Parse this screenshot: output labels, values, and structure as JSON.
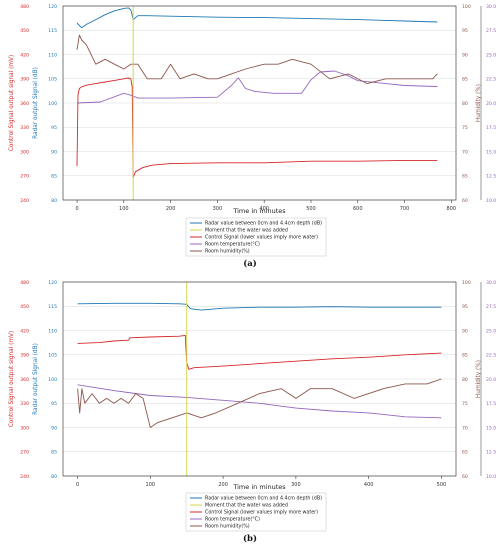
{
  "colors": {
    "radar": "#1f77b4",
    "event": "#d6d64a",
    "control": "#d62728",
    "temperature": "#9467bd",
    "humidity": "#8c564b",
    "grid": "#d9d9d9"
  },
  "chart_data": [
    {
      "type": "line",
      "caption": "(a)",
      "xlabel": "Time in minutes",
      "xlim": [
        -30,
        810
      ],
      "x_ticks": [
        "0",
        "100",
        "200",
        "300",
        "400",
        "500",
        "600",
        "700",
        "800"
      ],
      "event_x": 120,
      "axes": {
        "radar": {
          "label": "Radar output Signal (dB)",
          "range": [
            80,
            120
          ],
          "ticks": [
            "80",
            "85",
            "90",
            "95",
            "100",
            "105",
            "110",
            "115",
            "120"
          ]
        },
        "control": {
          "label": "Control Signal output signal (mV)",
          "range": [
            240,
            480
          ],
          "ticks": [
            "240",
            "270",
            "300",
            "330",
            "360",
            "390",
            "420",
            "450",
            "480"
          ]
        },
        "humidity": {
          "label": "Humidity (%)",
          "range": [
            60,
            100
          ],
          "ticks": [
            "60",
            "65",
            "70",
            "75",
            "80",
            "85",
            "90",
            "95",
            "100"
          ]
        },
        "temperature": {
          "label": "Temperature (°C)",
          "range": [
            10,
            30
          ],
          "ticks": [
            "10.0",
            "12.5",
            "15.0",
            "17.5",
            "20.0",
            "22.5",
            "25.0",
            "27.5",
            "30.0"
          ]
        }
      },
      "series": [
        {
          "name": "Radar value between 0cm and 4.4cm depth (dB)",
          "axis": "radar",
          "color": "#1f77b4",
          "x": [
            0,
            10,
            20,
            40,
            60,
            80,
            100,
            110,
            115,
            120,
            130,
            150,
            200,
            300,
            400,
            500,
            600,
            700,
            770
          ],
          "y": [
            116.5,
            115.5,
            116.2,
            117.2,
            118.2,
            119,
            119.5,
            119.6,
            119.2,
            117.2,
            118,
            118,
            117.9,
            117.7,
            117.6,
            117.4,
            117.2,
            116.9,
            116.7
          ]
        },
        {
          "name": "Moment that the water was added",
          "axis": "event",
          "color": "#d6d64a",
          "x": [],
          "y": []
        },
        {
          "name": "Control Signal (lower values imply more water)",
          "axis": "control",
          "color": "#d62728",
          "x": [
            0,
            2,
            5,
            10,
            20,
            40,
            60,
            80,
            100,
            110,
            115,
            118,
            120,
            125,
            140,
            160,
            200,
            300,
            400,
            500,
            600,
            700,
            770
          ],
          "y": [
            282,
            370,
            378,
            380,
            382,
            384,
            386,
            388,
            390,
            391,
            390,
            380,
            268,
            275,
            280,
            283,
            285,
            286,
            286,
            288,
            288,
            289,
            289
          ]
        },
        {
          "name": "Room temperature(°C)",
          "axis": "temperature",
          "color": "#9467bd",
          "x": [
            0,
            50,
            100,
            115,
            130,
            200,
            300,
            330,
            345,
            360,
            380,
            420,
            480,
            500,
            520,
            550,
            580,
            600,
            700,
            770
          ],
          "y": [
            20,
            20.1,
            21,
            20.8,
            20.5,
            20.5,
            20.6,
            21.8,
            22.6,
            21.5,
            21.2,
            21.0,
            21.0,
            22.4,
            23.2,
            23.3,
            22.8,
            22.3,
            21.8,
            21.7
          ]
        },
        {
          "name": "Room humidity(%)",
          "axis": "humidity",
          "color": "#8c564b",
          "x": [
            0,
            5,
            10,
            20,
            40,
            60,
            80,
            100,
            115,
            130,
            150,
            180,
            200,
            220,
            250,
            280,
            300,
            330,
            360,
            400,
            430,
            460,
            500,
            540,
            580,
            620,
            660,
            700,
            730,
            760,
            770
          ],
          "y": [
            91,
            94,
            93,
            92,
            88,
            89,
            88,
            87,
            88,
            88,
            85,
            85,
            88,
            85,
            86,
            85,
            85,
            86,
            87,
            88,
            88,
            89,
            88,
            85,
            86,
            84,
            85,
            85,
            85,
            85,
            86
          ]
        }
      ]
    },
    {
      "type": "line",
      "caption": "(b)",
      "xlabel": "Time in minutes",
      "xlim": [
        -20,
        520
      ],
      "x_ticks": [
        "0",
        "100",
        "200",
        "300",
        "400",
        "500"
      ],
      "event_x": 150,
      "axes": {
        "radar": {
          "label": "Radar output Signal (dB)",
          "range": [
            80,
            120
          ],
          "ticks": [
            "80",
            "85",
            "90",
            "95",
            "100",
            "105",
            "110",
            "115",
            "120"
          ]
        },
        "control": {
          "label": "Control Signal output signal (mV)",
          "range": [
            240,
            480
          ],
          "ticks": [
            "240",
            "270",
            "300",
            "330",
            "360",
            "390",
            "420",
            "450",
            "480"
          ]
        },
        "humidity": {
          "label": "Humidity (%)",
          "range": [
            60,
            100
          ],
          "ticks": [
            "60",
            "65",
            "70",
            "75",
            "80",
            "85",
            "90",
            "95",
            "100"
          ]
        },
        "temperature": {
          "label": "Temperature (°C)",
          "range": [
            10,
            30
          ],
          "ticks": [
            "10.0",
            "12.5",
            "15.0",
            "17.5",
            "20.0",
            "22.5",
            "25.0",
            "27.5",
            "30.0"
          ]
        }
      },
      "series": [
        {
          "name": "Radar value between 0cm and 4.4cm depth (dB)",
          "axis": "radar",
          "color": "#1f77b4",
          "x": [
            0,
            50,
            100,
            140,
            150,
            155,
            170,
            200,
            250,
            300,
            350,
            400,
            450,
            500
          ],
          "y": [
            115.5,
            115.6,
            115.6,
            115.5,
            115.4,
            114.5,
            114.2,
            114.6,
            114.8,
            114.8,
            114.9,
            114.8,
            114.8,
            114.8
          ]
        },
        {
          "name": "Moment that the water was added",
          "axis": "event",
          "color": "#d6d64a",
          "x": [],
          "y": []
        },
        {
          "name": "Control Signal (lower values imply more water)",
          "axis": "control",
          "color": "#d62728",
          "x": [
            0,
            30,
            50,
            70,
            72,
            100,
            140,
            148,
            150,
            153,
            160,
            200,
            250,
            300,
            350,
            400,
            450,
            500
          ],
          "y": [
            404,
            405,
            407,
            408,
            411,
            412,
            413,
            414,
            380,
            372,
            374,
            376,
            379,
            382,
            385,
            387,
            390,
            392
          ]
        },
        {
          "name": "Room temperature(°C)",
          "axis": "temperature",
          "color": "#9467bd",
          "x": [
            0,
            50,
            100,
            150,
            200,
            250,
            300,
            350,
            400,
            450,
            500
          ],
          "y": [
            19.4,
            18.8,
            18.3,
            18.1,
            17.8,
            17.5,
            17.0,
            16.7,
            16.5,
            16.1,
            16.0
          ]
        },
        {
          "name": "Room humidity(%)",
          "axis": "humidity",
          "color": "#8c564b",
          "x": [
            0,
            3,
            6,
            10,
            20,
            30,
            40,
            50,
            60,
            70,
            80,
            90,
            100,
            110,
            130,
            150,
            170,
            190,
            220,
            250,
            280,
            300,
            320,
            350,
            380,
            400,
            420,
            450,
            480,
            500
          ],
          "y": [
            78,
            73,
            78,
            75,
            77,
            75,
            76,
            75,
            76,
            75,
            77,
            76,
            70,
            71,
            72,
            73,
            72,
            73,
            75,
            77,
            78,
            76,
            78,
            78,
            76,
            77,
            78,
            79,
            79,
            80
          ]
        }
      ]
    }
  ]
}
